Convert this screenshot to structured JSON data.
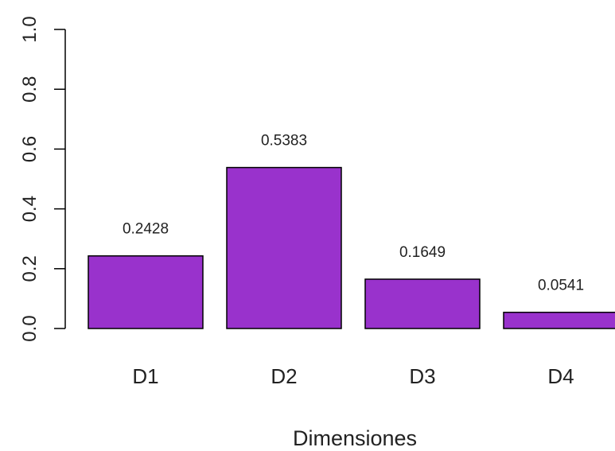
{
  "chart_data": {
    "type": "bar",
    "categories": [
      "D1",
      "D2",
      "D3",
      "D4"
    ],
    "values": [
      0.2428,
      0.5383,
      0.1649,
      0.0541
    ],
    "data_labels": [
      "0.2428",
      "0.5383",
      "0.1649",
      "0.0541"
    ],
    "xlabel": "Dimensiones",
    "ylabel": "",
    "ylim": [
      0,
      1
    ],
    "yticks": [
      0,
      0.2,
      0.4,
      0.6,
      0.8,
      1
    ],
    "ytick_labels": [
      "0.0",
      "0.2",
      "0.4",
      "0.6",
      "0.8",
      "1.0"
    ],
    "grid": false,
    "legend": "none",
    "bar_color": "#9932CC",
    "bar_edge_color": "#000000"
  }
}
